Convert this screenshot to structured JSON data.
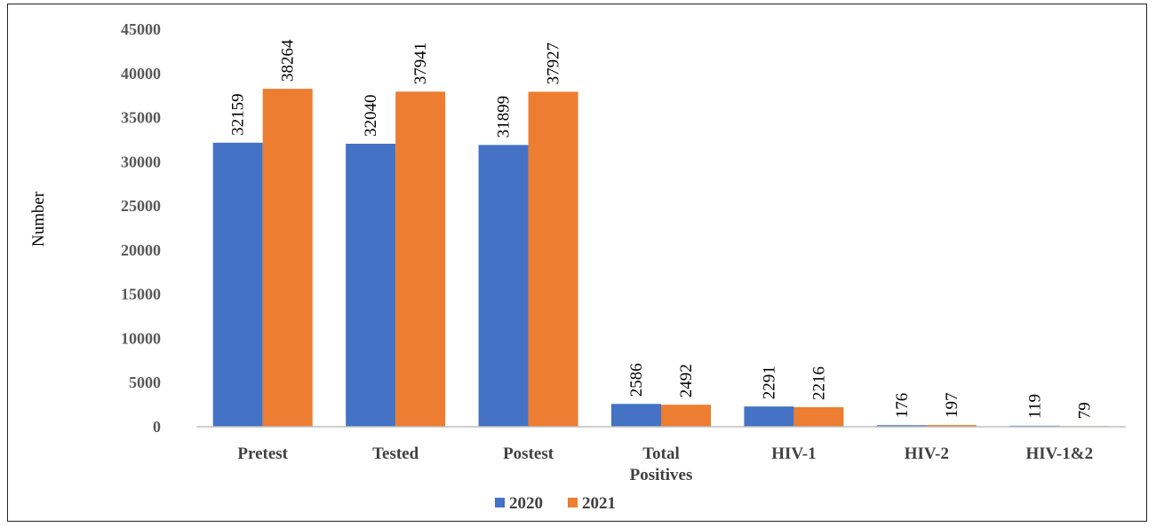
{
  "chart_data": {
    "type": "bar",
    "title": "",
    "xlabel": "",
    "ylabel": "Number",
    "ylim": [
      0,
      45000
    ],
    "yticks": [
      0,
      5000,
      10000,
      15000,
      20000,
      25000,
      30000,
      35000,
      40000,
      45000
    ],
    "grid": false,
    "legend_position": "bottom",
    "categories": [
      [
        "Pretest"
      ],
      [
        "Tested"
      ],
      [
        "Postest"
      ],
      [
        "Total",
        "Positives"
      ],
      [
        "HIV-1"
      ],
      [
        "HIV-2"
      ],
      [
        "HIV-1&2"
      ]
    ],
    "series": [
      {
        "name": "2020",
        "color": "#4472C4",
        "values": [
          32159,
          32040,
          31899,
          2586,
          2291,
          176,
          119
        ]
      },
      {
        "name": "2021",
        "color": "#ED7D31",
        "values": [
          38264,
          37941,
          37927,
          2492,
          2216,
          197,
          79
        ]
      }
    ]
  }
}
